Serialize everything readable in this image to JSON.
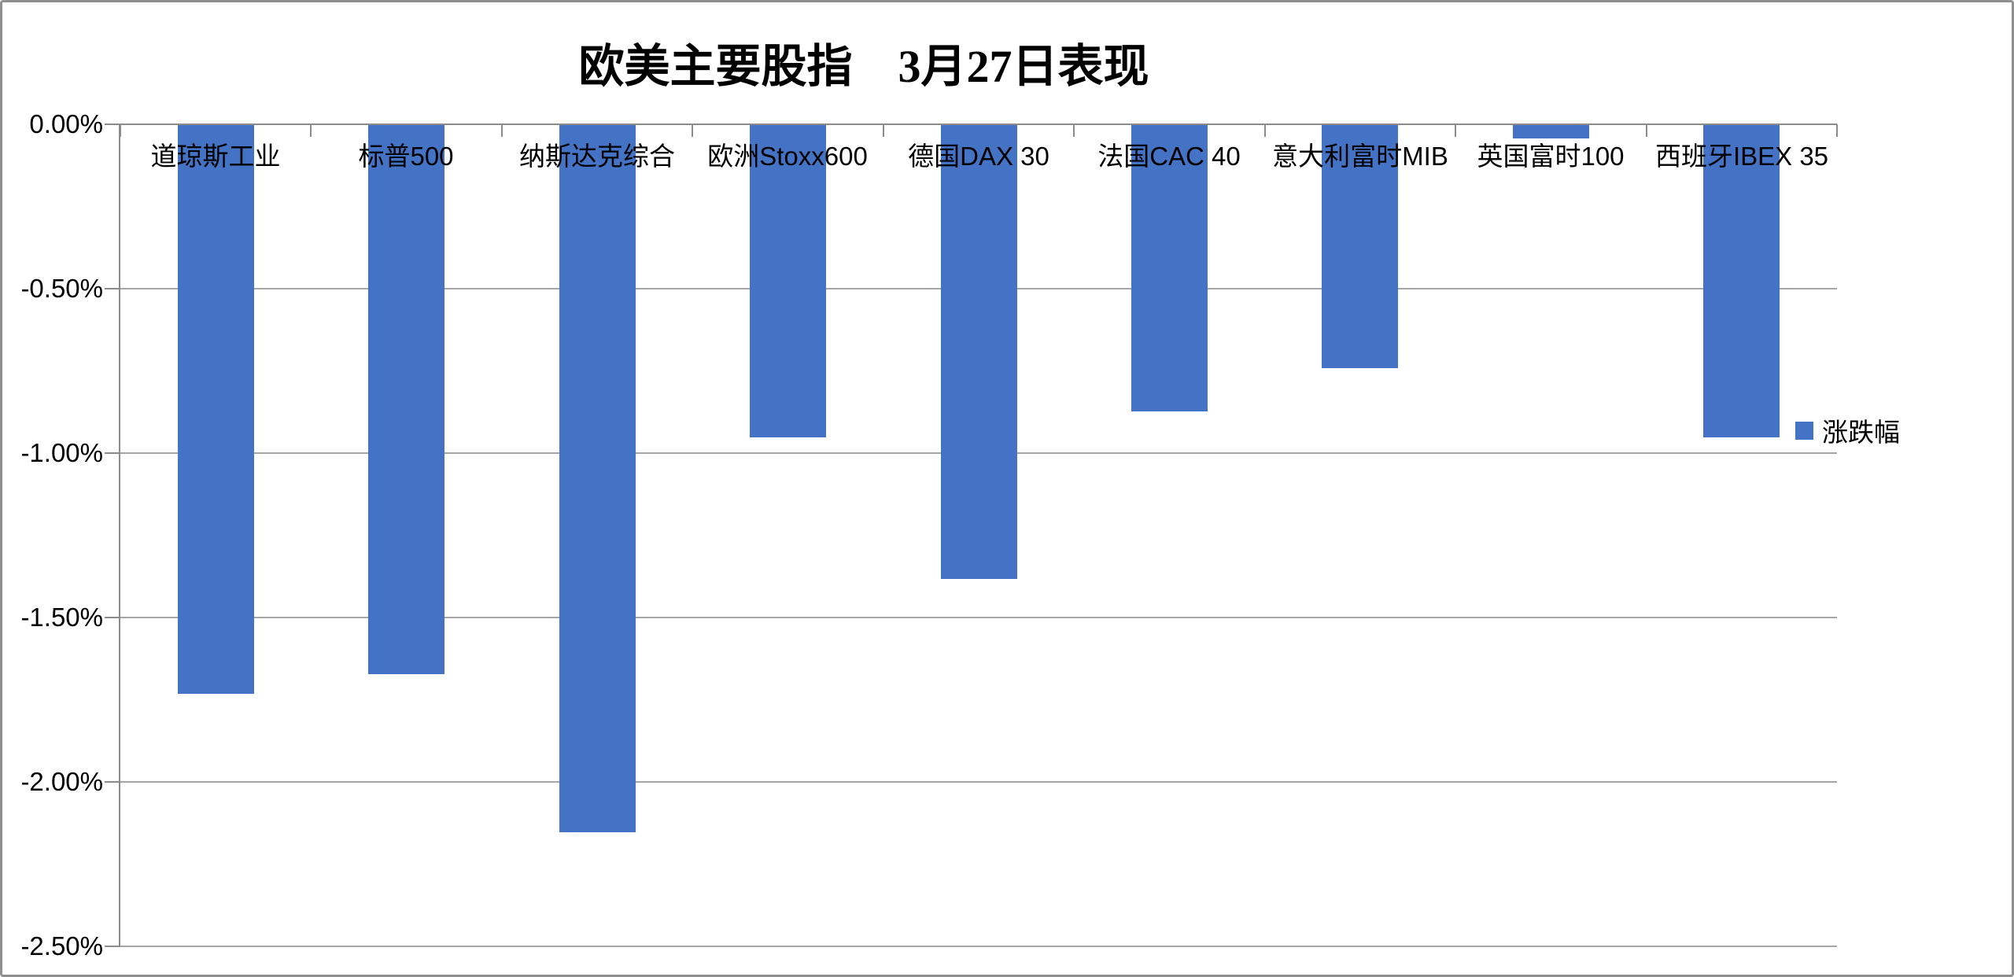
{
  "title": "欧美主要股指　3月27日表现",
  "legend": {
    "label": "涨跌幅"
  },
  "colors": {
    "bar": "#4472C4",
    "gridline": "#A6A6A6",
    "axis": "#8C8C8C",
    "text": "#000000"
  },
  "chart_data": {
    "type": "bar",
    "title": "欧美主要股指　3月27日表现",
    "categories": [
      "道琼斯工业",
      "标普500",
      "纳斯达克综合",
      "欧洲Stoxx600",
      "德国DAX 30",
      "法国CAC 40",
      "意大利富时MIB",
      "英国富时100",
      "西班牙IBEX 35"
    ],
    "series": [
      {
        "name": "涨跌幅",
        "values": [
          -1.73,
          -1.67,
          -2.15,
          -0.95,
          -1.38,
          -0.87,
          -0.74,
          -0.04,
          -0.95
        ]
      }
    ],
    "unit": "%",
    "xlabel": "",
    "ylabel": "",
    "ylim": [
      -2.5,
      0
    ],
    "y_ticks": [
      {
        "value": 0,
        "label": "0.00%"
      },
      {
        "value": -0.5,
        "label": "-0.50%"
      },
      {
        "value": -1.0,
        "label": "-1.00%"
      },
      {
        "value": -1.5,
        "label": "-1.50%"
      },
      {
        "value": -2.0,
        "label": "-2.00%"
      },
      {
        "value": -2.5,
        "label": "-2.50%"
      }
    ],
    "grid": true,
    "legend_position": "right-overlay"
  }
}
